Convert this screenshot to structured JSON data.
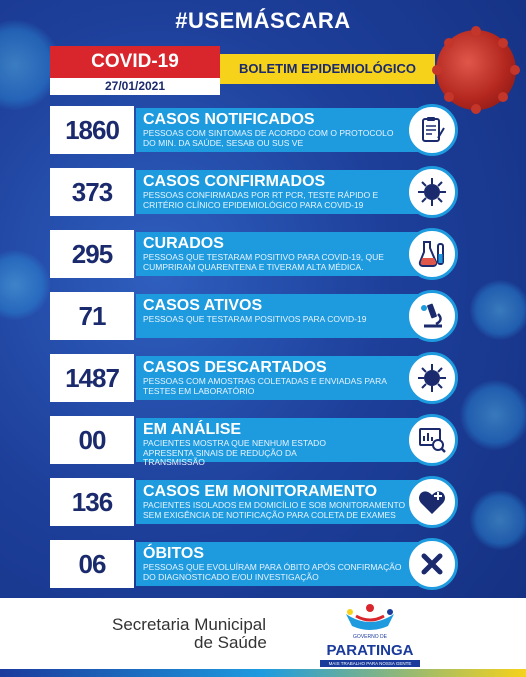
{
  "header": {
    "hashtag": "#USEMÁSCARA",
    "covid_label": "COVID-19",
    "date": "27/01/2021",
    "boletim_label": "BOLETIM EPIDEMIOLÓGICO"
  },
  "rows": [
    {
      "value": "1860",
      "title": "CASOS NOTIFICADOS",
      "desc": "PESSOAS COM SINTOMAS DE ACORDO COM O PROTOCOLO DO MIN. DA SAÚDE, SESAB OU SUS VE",
      "icon": "clipboard-icon"
    },
    {
      "value": "373",
      "title": "CASOS CONFIRMADOS",
      "desc": "PESSOAS CONFIRMADAS POR RT PCR, TESTE RÁPIDO E CRITÉRIO CLÍNICO EPIDEMIOLÓGICO PARA COVID-19",
      "icon": "virus-icon"
    },
    {
      "value": "295",
      "title": "CURADOS",
      "desc": "PESSOAS QUE TESTARAM POSITIVO PARA COVID-19, QUE CUMPRIRAM QUARENTENA E TIVERAM ALTA MÉDICA.",
      "icon": "test-tube-icon"
    },
    {
      "value": "71",
      "title": "CASOS ATIVOS",
      "desc": "PESSOAS QUE TESTARAM POSITIVOS PARA COVID-19",
      "icon": "microscope-icon"
    },
    {
      "value": "1487",
      "title": "CASOS DESCARTADOS",
      "desc": "PESSOAS COM AMOSTRAS COLETADAS E ENVIADAS PARA TESTES EM LABORATÓRIO",
      "icon": "virus-icon"
    },
    {
      "value": "00",
      "title": "EM ANÁLISE",
      "desc": "PACIENTES MOSTRA QUE NENHUM ESTADO APRESENTA SINAIS DE REDUÇÃO DA TRANSMISSÃO",
      "icon": "analysis-icon"
    },
    {
      "value": "136",
      "title": "CASOS EM MONITORAMENTO",
      "desc": "PACIENTES ISOLADOS EM DOMICÍLIO E SOB MONITORAMENTO SEM EXIGÊNCIA DE NOTIFICAÇÃO PARA COLETA DE EXAMES",
      "icon": "heart-plus-icon"
    },
    {
      "value": "06",
      "title": "ÓBITOS",
      "desc": "PESSOAS QUE EVOLUÍRAM PARA ÓBITO APÓS CONFIRMAÇÃO DO DIAGNOSTICADO E/OU INVESTIGAÇÃO",
      "icon": "x-icon"
    }
  ],
  "footer": {
    "secretaria": "Secretaria Municipal",
    "saude": "de Saúde",
    "logo_gov": "GOVERNO DE",
    "logo_name": "PARATINGA",
    "logo_tagline": "MAIS TRABALHO PARA NOSSA GENTE"
  },
  "colors": {
    "background": "#1d3f9a",
    "bar": "#1e9bdf",
    "covid_red": "#d8262c",
    "boletim_yellow": "#f6d21b",
    "number_text": "#1a2a6c"
  }
}
